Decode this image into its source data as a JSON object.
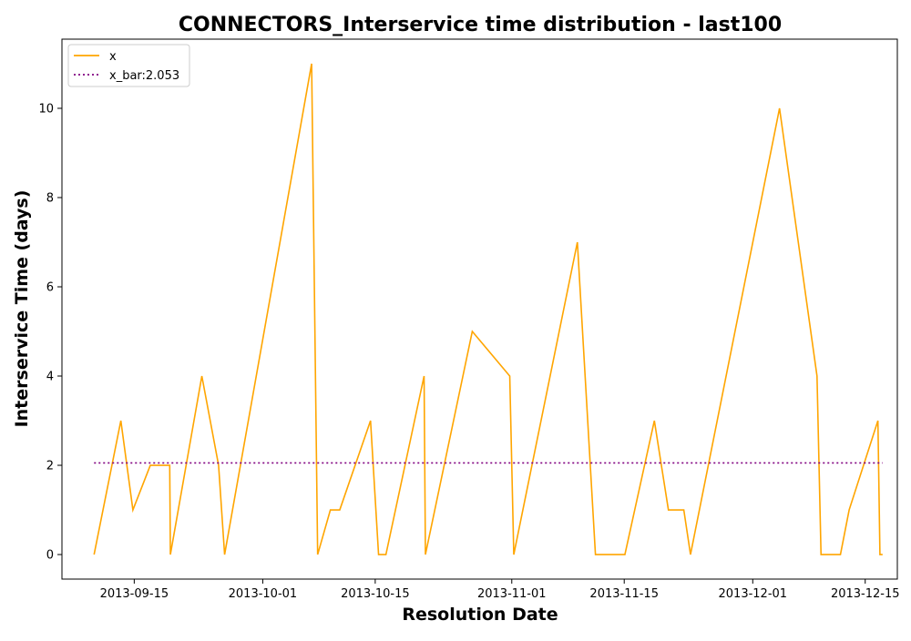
{
  "chart_data": {
    "type": "line",
    "title": "CONNECTORS_Interservice time distribution - last100",
    "xlabel": "Resolution Date",
    "ylabel": "Interservice Time (days)",
    "x_type": "date",
    "xlim": [
      "2013-09-06",
      "2013-12-19"
    ],
    "ylim": [
      -0.55,
      11.55
    ],
    "xticks": [
      "2013-09-15",
      "2013-10-01",
      "2013-10-15",
      "2013-11-01",
      "2013-11-15",
      "2013-12-01",
      "2013-12-15"
    ],
    "yticks": [
      0,
      2,
      4,
      6,
      8,
      10
    ],
    "legend_position": "upper-left",
    "series": [
      {
        "name": "x",
        "color": "#ffa500",
        "style": "solid",
        "points": [
          [
            "2013-09-10",
            0
          ],
          [
            "2013-09-13 08:00",
            3
          ],
          [
            "2013-09-14 20:00",
            1
          ],
          [
            "2013-09-17",
            2
          ],
          [
            "2013-09-19 10:00",
            2
          ],
          [
            "2013-09-19 12:00",
            0
          ],
          [
            "2013-09-23 10:00",
            4
          ],
          [
            "2013-09-25 12:00",
            2
          ],
          [
            "2013-09-26 06:00",
            0
          ],
          [
            "2013-10-07 02:00",
            11
          ],
          [
            "2013-10-07 20:00",
            0
          ],
          [
            "2013-10-09 10:00",
            1
          ],
          [
            "2013-10-10 14:00",
            1
          ],
          [
            "2013-10-14 10:00",
            3
          ],
          [
            "2013-10-15 10:00",
            0
          ],
          [
            "2013-10-16 08:00",
            0
          ],
          [
            "2013-10-21 02:00",
            4
          ],
          [
            "2013-10-21 06:00",
            0
          ],
          [
            "2013-10-27 02:00",
            5
          ],
          [
            "2013-10-31 18:00",
            4
          ],
          [
            "2013-11-01 06:00",
            0
          ],
          [
            "2013-11-09 04:00",
            7
          ],
          [
            "2013-11-11 10:00",
            0
          ],
          [
            "2013-11-15 02:00",
            0
          ],
          [
            "2013-11-18 18:00",
            3
          ],
          [
            "2013-11-20 12:00",
            1
          ],
          [
            "2013-11-22 10:00",
            1
          ],
          [
            "2013-11-23 06:00",
            0
          ],
          [
            "2013-12-04 08:00",
            10
          ],
          [
            "2013-12-09",
            4
          ],
          [
            "2013-12-09 12:00",
            0
          ],
          [
            "2013-12-11 22:00",
            0
          ],
          [
            "2013-12-13",
            1
          ],
          [
            "2013-12-16 14:00",
            3
          ],
          [
            "2013-12-16 20:00",
            0
          ],
          [
            "2013-12-17 04:00",
            0
          ]
        ]
      },
      {
        "name": "x_bar:2.053",
        "color": "#800080",
        "style": "dotted",
        "points": [
          [
            "2013-09-10",
            2.053
          ],
          [
            "2013-12-17 04:00",
            2.053
          ]
        ]
      }
    ]
  }
}
